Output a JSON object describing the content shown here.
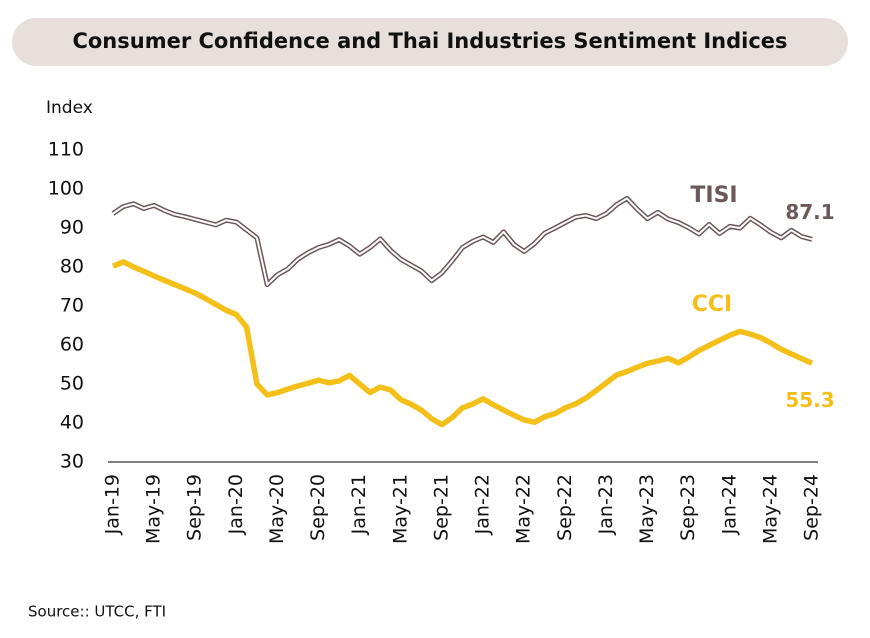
{
  "chart_data": {
    "type": "line",
    "title": "Consumer Confidence and Thai Industries Sentiment Indices",
    "y_label": "Index",
    "source": "Source:: UTCC, FTI",
    "categories": [
      "Jan-19",
      null,
      null,
      null,
      "May-19",
      null,
      null,
      null,
      "Sep-19",
      null,
      null,
      null,
      "Jan-20",
      null,
      null,
      null,
      "May-20",
      null,
      null,
      null,
      "Sep-20",
      null,
      null,
      null,
      "Jan-21",
      null,
      null,
      null,
      "May-21",
      null,
      null,
      null,
      "Sep-21",
      null,
      null,
      null,
      "Jan-22",
      null,
      null,
      null,
      "May-22",
      null,
      null,
      null,
      "Sep-22",
      null,
      null,
      null,
      "Jan-23",
      null,
      null,
      null,
      "May-23",
      null,
      null,
      null,
      "Sep-23",
      null,
      null,
      null,
      "Jan-24",
      null,
      null,
      null,
      "May-24",
      null,
      null,
      null,
      "Sep-24"
    ],
    "series": [
      {
        "name": "TISI",
        "color": "#6b5858",
        "values": [
          93.7,
          95.5,
          96.2,
          95,
          95.8,
          94.5,
          93.5,
          92.9,
          92.2,
          91.5,
          90.8,
          92,
          91.5,
          89.5,
          87.5,
          75.5,
          78,
          79.5,
          82,
          83.7,
          85,
          85.8,
          87,
          85.4,
          83.3,
          85,
          87.2,
          84.3,
          82,
          80.5,
          79,
          76.5,
          78.5,
          81.6,
          85,
          86.6,
          87.7,
          86.3,
          89,
          85.8,
          84,
          86,
          88.7,
          90,
          91.4,
          92.8,
          93.2,
          92.4,
          93.7,
          96,
          97.6,
          94.8,
          92.4,
          94,
          92.3,
          91.4,
          90.1,
          88.5,
          90.9,
          88.6,
          90.4,
          90,
          92.5,
          90.8,
          88.9,
          87.5,
          89.4,
          87.8,
          87.1
        ]
      },
      {
        "name": "CCI",
        "color": "#f5bf1a",
        "values": [
          80.2,
          81.3,
          80,
          78.9,
          77.7,
          76.6,
          75.5,
          74.4,
          73.3,
          71.9,
          70.4,
          68.9,
          67.8,
          64.6,
          50,
          47.2,
          47.8,
          48.7,
          49.5,
          50.2,
          51,
          50.3,
          50.8,
          52.2,
          50,
          47.8,
          49.2,
          48.5,
          46,
          44.8,
          43.3,
          41.1,
          39.6,
          41.4,
          43.9,
          44.9,
          46.2,
          44.7,
          43.3,
          42,
          40.8,
          40.2,
          41.6,
          42.4,
          43.9,
          44.9,
          46.4,
          48.3,
          50.3,
          52.3,
          53.2,
          54.3,
          55.3,
          55.9,
          56.6,
          55.4,
          56.9,
          58.6,
          59.9,
          61.2,
          62.5,
          63.5,
          62.8,
          61.9,
          60.5,
          58.9,
          57.7,
          56.5,
          55.3
        ]
      }
    ],
    "ylim": [
      30,
      110
    ],
    "yticks": [
      30,
      40,
      50,
      60,
      70,
      80,
      90,
      100,
      110
    ],
    "grid": false
  }
}
